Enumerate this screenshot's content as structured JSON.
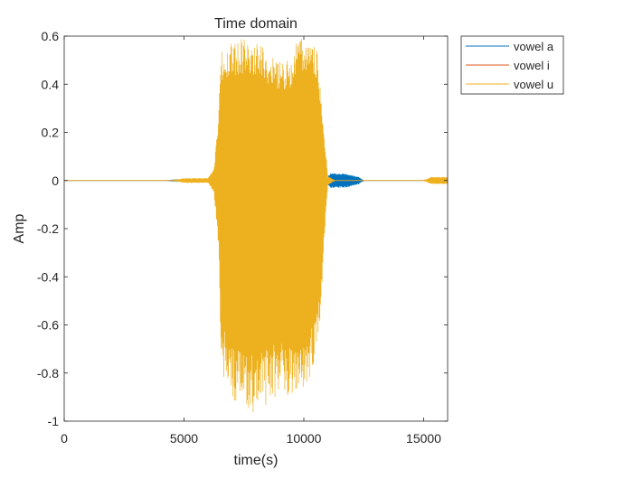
{
  "chart_data": {
    "type": "line",
    "title": "Time domain",
    "xlabel": "time(s)",
    "ylabel": "Amp",
    "xlim": [
      0,
      16000
    ],
    "ylim": [
      -1,
      0.6
    ],
    "xticks": [
      0,
      5000,
      10000,
      15000
    ],
    "xtick_labels": [
      "0",
      "5000",
      "10000",
      "15000"
    ],
    "yticks": [
      -1,
      -0.8,
      -0.6,
      -0.4,
      -0.2,
      0,
      0.2,
      0.4,
      0.6
    ],
    "ytick_labels": [
      "-1",
      "-0.8",
      "-0.6",
      "-0.4",
      "-0.2",
      "0",
      "0.2",
      "0.4",
      "0.6"
    ],
    "grid": false,
    "legend_position": "outside-top-right",
    "series": [
      {
        "name": "vowel a",
        "color": "#0072BD",
        "envelope": [
          {
            "x": 0,
            "upper": 0.0,
            "lower": 0.0
          },
          {
            "x": 4200,
            "upper": 0.0,
            "lower": 0.0
          },
          {
            "x": 5200,
            "upper": 0.005,
            "lower": -0.005
          },
          {
            "x": 10900,
            "upper": 0.005,
            "lower": -0.005
          },
          {
            "x": 11100,
            "upper": 0.03,
            "lower": -0.03
          },
          {
            "x": 11800,
            "upper": 0.03,
            "lower": -0.03
          },
          {
            "x": 12300,
            "upper": 0.015,
            "lower": -0.015
          },
          {
            "x": 12500,
            "upper": 0.0,
            "lower": 0.0
          },
          {
            "x": 16000,
            "upper": 0.0,
            "lower": 0.0
          }
        ]
      },
      {
        "name": "vowel i",
        "color": "#D95319",
        "envelope": [
          {
            "x": 0,
            "upper": 0.0,
            "lower": 0.0
          },
          {
            "x": 16000,
            "upper": 0.0,
            "lower": 0.0
          }
        ]
      },
      {
        "name": "vowel u",
        "color": "#EDB120",
        "envelope": [
          {
            "x": 0,
            "upper": 0.0,
            "lower": 0.0
          },
          {
            "x": 4500,
            "upper": 0.0,
            "lower": 0.0
          },
          {
            "x": 5000,
            "upper": 0.01,
            "lower": -0.01
          },
          {
            "x": 6000,
            "upper": 0.01,
            "lower": -0.01
          },
          {
            "x": 6250,
            "upper": 0.05,
            "lower": -0.05
          },
          {
            "x": 6450,
            "upper": 0.3,
            "lower": -0.3
          },
          {
            "x": 6550,
            "upper": 0.55,
            "lower": -0.8
          },
          {
            "x": 7000,
            "upper": 0.58,
            "lower": -0.9
          },
          {
            "x": 7500,
            "upper": 0.59,
            "lower": -0.97
          },
          {
            "x": 8200,
            "upper": 0.57,
            "lower": -0.96
          },
          {
            "x": 8800,
            "upper": 0.5,
            "lower": -0.9
          },
          {
            "x": 9500,
            "upper": 0.5,
            "lower": -0.9
          },
          {
            "x": 9600,
            "upper": 0.58,
            "lower": -0.88
          },
          {
            "x": 10000,
            "upper": 0.6,
            "lower": -0.87
          },
          {
            "x": 10500,
            "upper": 0.58,
            "lower": -0.78
          },
          {
            "x": 10700,
            "upper": 0.4,
            "lower": -0.55
          },
          {
            "x": 10850,
            "upper": 0.2,
            "lower": -0.25
          },
          {
            "x": 11000,
            "upper": 0.02,
            "lower": -0.02
          },
          {
            "x": 11300,
            "upper": 0.0,
            "lower": 0.0
          },
          {
            "x": 15000,
            "upper": 0.0,
            "lower": 0.0
          },
          {
            "x": 15300,
            "upper": 0.015,
            "lower": -0.015
          },
          {
            "x": 16000,
            "upper": 0.015,
            "lower": -0.015
          }
        ]
      }
    ]
  }
}
